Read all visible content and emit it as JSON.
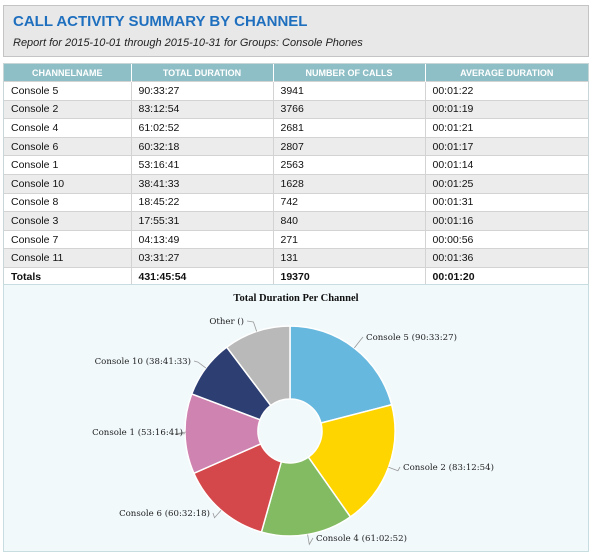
{
  "report": {
    "title": "CALL ACTIVITY SUMMARY BY CHANNEL",
    "subtitle": "Report for 2015-10-01 through 2015-10-31 for Groups: Console Phones"
  },
  "table": {
    "columns": [
      "CHANNELNAME",
      "TOTAL DURATION",
      "NUMBER OF CALLS",
      "AVERAGE DURATION"
    ],
    "rows": [
      [
        "Console 5",
        "90:33:27",
        "3941",
        "00:01:22"
      ],
      [
        "Console 2",
        "83:12:54",
        "3766",
        "00:01:19"
      ],
      [
        "Console 4",
        "61:02:52",
        "2681",
        "00:01:21"
      ],
      [
        "Console 6",
        "60:32:18",
        "2807",
        "00:01:17"
      ],
      [
        "Console 1",
        "53:16:41",
        "2563",
        "00:01:14"
      ],
      [
        "Console 10",
        "38:41:33",
        "1628",
        "00:01:25"
      ],
      [
        "Console 8",
        "18:45:22",
        "742",
        "00:01:31"
      ],
      [
        "Console 3",
        "17:55:31",
        "840",
        "00:01:16"
      ],
      [
        "Console 7",
        "04:13:49",
        "271",
        "00:00:56"
      ],
      [
        "Console 11",
        "03:31:27",
        "131",
        "00:01:36"
      ]
    ],
    "totals": [
      "Totals",
      "431:45:54",
      "19370",
      "00:01:20"
    ]
  },
  "chart_data": {
    "type": "pie",
    "title": "Total Duration Per Channel",
    "donut": true,
    "slices": [
      {
        "label": "Console 5 (90:33:27)",
        "value": 90.558,
        "color": "#67b8de"
      },
      {
        "label": "Console 2 (83:12:54)",
        "value": 83.215,
        "color": "#ffd500"
      },
      {
        "label": "Console 4 (61:02:52)",
        "value": 61.048,
        "color": "#82bb62"
      },
      {
        "label": "Console 6 (60:32:18)",
        "value": 60.538,
        "color": "#d4474a"
      },
      {
        "label": "Console 1 (53:16:41)",
        "value": 53.278,
        "color": "#cf83b0"
      },
      {
        "label": "Console 10 (38:41:33)",
        "value": 38.693,
        "color": "#2d3e72"
      },
      {
        "label": "Other ()",
        "value": 44.43,
        "color": "#b9b9b9"
      }
    ]
  }
}
